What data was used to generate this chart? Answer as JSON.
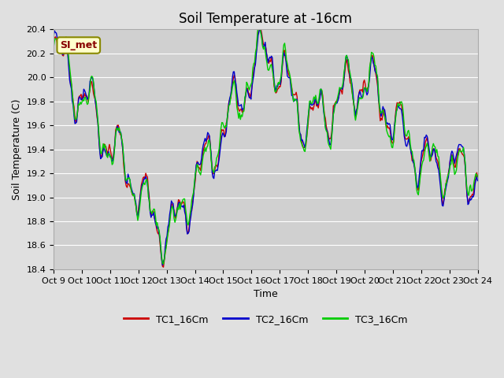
{
  "title": "Soil Temperature at -16cm",
  "xlabel": "Time",
  "ylabel": "Soil Temperature (C)",
  "ylim": [
    18.4,
    20.4
  ],
  "tick_labels": [
    "Oct 9",
    "Oct 10",
    "Oct 11",
    "Oct 12",
    "Oct 13",
    "Oct 14",
    "Oct 15",
    "Oct 16",
    "Oct 17",
    "Oct 18",
    "Oct 19",
    "Oct 20",
    "Oct 21",
    "Oct 22",
    "Oct 23",
    "Oct 24"
  ],
  "legend_labels": [
    "TC1_16Cm",
    "TC2_16Cm",
    "TC3_16Cm"
  ],
  "line_colors": [
    "#cc0000",
    "#0000cc",
    "#00cc00"
  ],
  "annotation_text": "SI_met",
  "annotation_bg": "#ffffcc",
  "annotation_border": "#888800",
  "fig_bg": "#e0e0e0",
  "plot_bg": "#d0d0d0",
  "grid_color": "#ffffff",
  "title_fontsize": 12,
  "axis_fontsize": 9,
  "tick_fontsize": 8,
  "legend_fontsize": 9
}
